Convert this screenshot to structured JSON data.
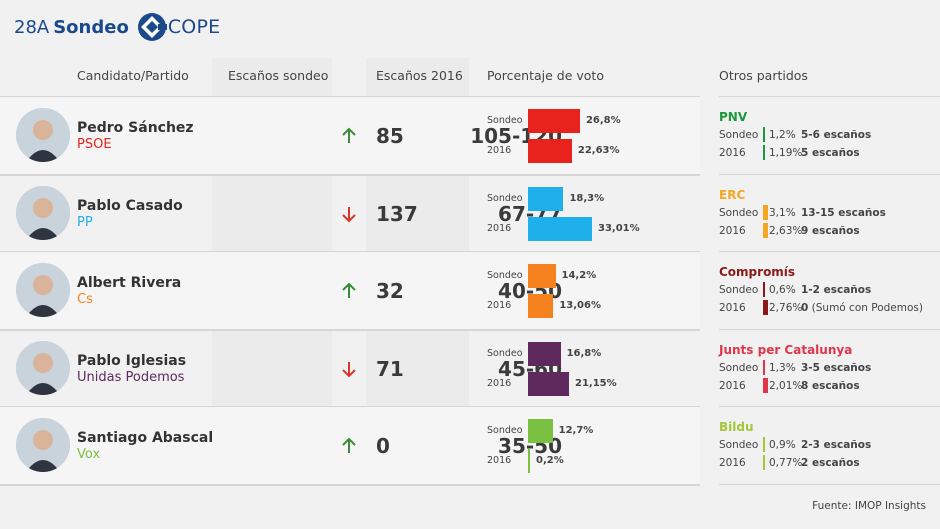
{
  "header": {
    "prefix": "28A",
    "title": "Sondeo",
    "logo_text": "COPE"
  },
  "columns": {
    "candidate": "Candidato/Partido",
    "seats_poll": "Escaños sondeo",
    "seats_2016": "Escaños 2016",
    "vote_pct": "Porcentaje de voto",
    "others": "Otros partidos"
  },
  "chart_data": {
    "type": "bar",
    "title": "Porcentaje de voto",
    "categories": [
      "PSOE",
      "PP",
      "Cs",
      "Unidas Podemos",
      "Vox"
    ],
    "series": [
      {
        "name": "Sondeo",
        "values": [
          26.8,
          18.3,
          14.2,
          16.8,
          12.7
        ]
      },
      {
        "name": "2016",
        "values": [
          22.63,
          33.01,
          13.06,
          21.15,
          0.2
        ]
      }
    ],
    "xlim": [
      0,
      33.01
    ]
  },
  "bar_labels": {
    "poll": "Sondeo",
    "prev": "2016"
  },
  "candidates": [
    {
      "name": "Pedro Sánchez",
      "party": "PSOE",
      "color": "#e8221d",
      "seats_poll": "105-120",
      "trend": "up",
      "seats_2016": "85",
      "poll_label": "26,8%",
      "prev_label": "22,63%"
    },
    {
      "name": "Pablo Casado",
      "party": "PP",
      "color": "#1fb0ec",
      "seats_poll": "67-77",
      "trend": "down",
      "seats_2016": "137",
      "poll_label": "18,3%",
      "prev_label": "33,01%"
    },
    {
      "name": "Albert Rivera",
      "party": "Cs",
      "color": "#f5821f",
      "seats_poll": "40-50",
      "trend": "up",
      "seats_2016": "32",
      "poll_label": "14,2%",
      "prev_label": "13,06%"
    },
    {
      "name": "Pablo Iglesias",
      "party": "Unidas Podemos",
      "color": "#5e2a5e",
      "seats_poll": "45-60",
      "trend": "down",
      "seats_2016": "71",
      "poll_label": "16,8%",
      "prev_label": "21,15%"
    },
    {
      "name": "Santiago Abascal",
      "party": "Vox",
      "color": "#7ac142",
      "seats_poll": "35-50",
      "trend": "up",
      "seats_2016": "0",
      "poll_label": "12,7%",
      "prev_label": "0,2%"
    }
  ],
  "trend_colors": {
    "up": "#3a8a3a",
    "down": "#d9362b"
  },
  "others": [
    {
      "name": "PNV",
      "color": "#1a9a3c",
      "poll_pct": "1,2%",
      "poll_seats": "5-6 escaños",
      "prev_pct": "1,19%",
      "prev_seats": "5 escaños",
      "prev_note": "",
      "poll_share": 1.2,
      "prev_share": 1.19
    },
    {
      "name": "ERC",
      "color": "#f5a623",
      "poll_pct": "3,1%",
      "poll_seats": "13-15 escaños",
      "prev_pct": "2,63%",
      "prev_seats": "9 escaños",
      "prev_note": "",
      "poll_share": 3.1,
      "prev_share": 2.63
    },
    {
      "name": "Compromís",
      "color": "#8a1a1a",
      "poll_pct": "0,6%",
      "poll_seats": "1-2 escaños",
      "prev_pct": "2,76%",
      "prev_seats": "0",
      "prev_note": "(Sumó con Podemos)",
      "poll_share": 0.6,
      "prev_share": 2.76
    },
    {
      "name": "Junts per Catalunya",
      "color": "#e0354a",
      "poll_pct": "1,3%",
      "poll_seats": "3-5 escaños",
      "prev_pct": "2,01%",
      "prev_seats": "8 escaños",
      "prev_note": "",
      "poll_share": 1.3,
      "prev_share": 2.01
    },
    {
      "name": "Bildu",
      "color": "#a4c639",
      "poll_pct": "0,9%",
      "poll_seats": "2-3 escaños",
      "prev_pct": "0,77%",
      "prev_seats": "2 escaños",
      "prev_note": "",
      "poll_share": 0.9,
      "prev_share": 0.77
    }
  ],
  "source": "Fuente: IMOP Insights"
}
